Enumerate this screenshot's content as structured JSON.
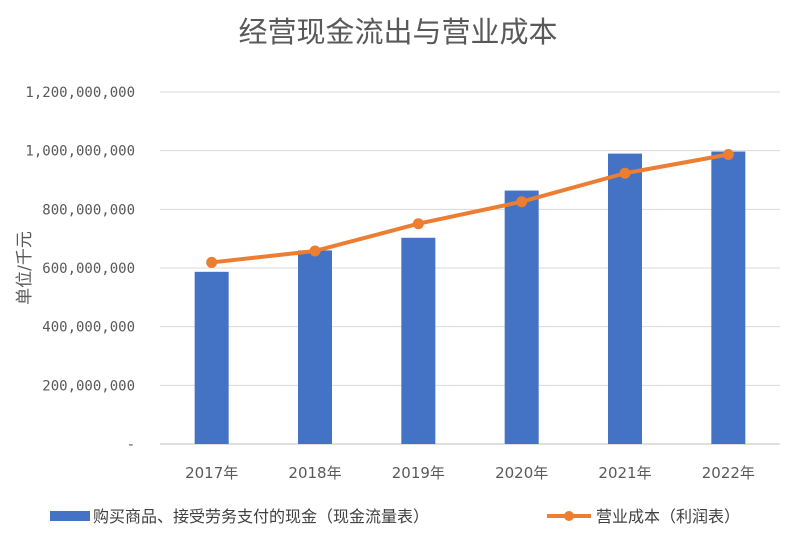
{
  "chart_data": {
    "type": "bar",
    "title": "经营现金流出与营业成本",
    "ylabel": "单位/千元",
    "xlabel": "",
    "categories": [
      "2017年",
      "2018年",
      "2019年",
      "2020年",
      "2021年",
      "2022年"
    ],
    "ylim": [
      0,
      1200000000
    ],
    "yticks": [
      0,
      200000000,
      400000000,
      600000000,
      800000000,
      1000000000,
      1200000000
    ],
    "ytick_labels": [
      "-",
      "200,000,000",
      "400,000,000",
      "600,000,000",
      "800,000,000",
      "1,000,000,000",
      "1,200,000,000"
    ],
    "grid": true,
    "legend_position": "bottom",
    "series": [
      {
        "name": "购买商品、接受劳务支付的现金（现金流量表）",
        "type": "bar",
        "color": "#4472C4",
        "values": [
          587000000,
          660000000,
          703000000,
          864000000,
          990000000,
          997000000
        ]
      },
      {
        "name": "营业成本（利润表）",
        "type": "line",
        "color": "#ED7D31",
        "values": [
          619000000,
          658000000,
          751000000,
          826000000,
          923000000,
          987000000
        ]
      }
    ]
  }
}
